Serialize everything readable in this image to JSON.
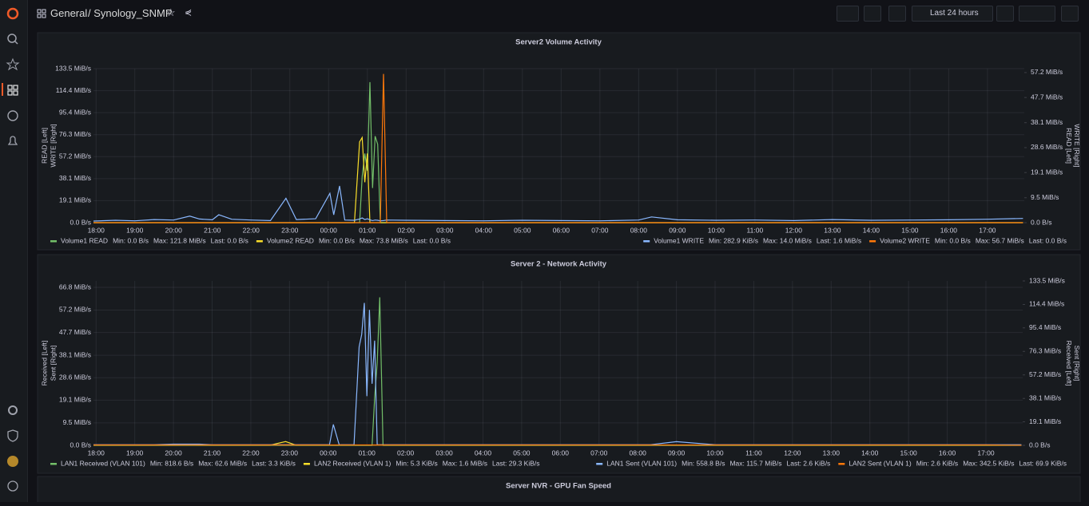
{
  "header": {
    "folder": "General",
    "dashboard": "/ Synology_SNMP",
    "time_range": "Last 24 hours"
  },
  "next_panel": {
    "title": "Server NVR - GPU Fan Speed"
  },
  "chart_data": [
    {
      "type": "line",
      "title": "Server2 Volume Activity",
      "ylabel": [
        "READ [Left]",
        "WRITE [Right]"
      ],
      "y2label": [
        "READ [Left]",
        "WRITE [Right]"
      ],
      "x": [
        "17:56",
        "18:30",
        "19:00",
        "19:30",
        "20:00",
        "20:25",
        "20:40",
        "21:00",
        "21:10",
        "21:30",
        "22:00",
        "22:30",
        "22:54",
        "23:10",
        "23:40",
        "00:02",
        "00:08",
        "00:17",
        "00:25",
        "00:40",
        "00:48",
        "00:52",
        "00:56",
        "01:00",
        "01:04",
        "01:08",
        "01:12",
        "01:16",
        "01:20",
        "01:25",
        "01:30",
        "02:00",
        "03:00",
        "04:00",
        "05:00",
        "06:00",
        "07:00",
        "08:00",
        "08:20",
        "09:00",
        "10:00",
        "11:00",
        "12:00",
        "13:00",
        "14:00",
        "15:00",
        "16:00",
        "17:00",
        "17:55"
      ],
      "xlim": [
        "17:56",
        "17:57"
      ],
      "xticks": [
        "18:00",
        "19:00",
        "20:00",
        "21:00",
        "22:00",
        "23:00",
        "00:00",
        "01:00",
        "02:00",
        "03:00",
        "04:00",
        "05:00",
        "06:00",
        "07:00",
        "08:00",
        "09:00",
        "10:00",
        "11:00",
        "12:00",
        "13:00",
        "14:00",
        "15:00",
        "16:00",
        "17:00"
      ],
      "ylim": [
        0,
        133.5
      ],
      "yticks": [
        {
          "value": 0,
          "label": "0.0 B/s"
        },
        {
          "value": 19.1,
          "label": "19.1 MiB/s"
        },
        {
          "value": 38.1,
          "label": "38.1 MiB/s"
        },
        {
          "value": 57.2,
          "label": "57.2 MiB/s"
        },
        {
          "value": 76.3,
          "label": "76.3 MiB/s"
        },
        {
          "value": 95.4,
          "label": "95.4 MiB/s"
        },
        {
          "value": 114.4,
          "label": "114.4 MiB/s"
        },
        {
          "value": 133.5,
          "label": "133.5 MiB/s"
        }
      ],
      "y2lim": [
        0,
        58.7
      ],
      "y2ticks": [
        {
          "value": 0,
          "label": "0.0 B/s"
        },
        {
          "value": 9.5,
          "label": "9.5 MiB/s"
        },
        {
          "value": 19.1,
          "label": "19.1 MiB/s"
        },
        {
          "value": 28.6,
          "label": "28.6 MiB/s"
        },
        {
          "value": 38.1,
          "label": "38.1 MiB/s"
        },
        {
          "value": 47.7,
          "label": "47.7 MiB/s"
        },
        {
          "value": 57.2,
          "label": "57.2 MiB/s"
        }
      ],
      "grid": true,
      "series": [
        {
          "name": "Volume1 READ",
          "color": "#73bf69",
          "stats": [
            "Min: 0.0 B/s",
            "Max: 121.8 MiB/s",
            "Last: 0.0 B/s"
          ],
          "values": [
            0,
            0,
            0,
            0,
            0,
            0,
            0,
            0,
            0,
            0,
            0,
            0,
            0,
            0,
            0,
            0,
            0,
            0,
            0,
            0,
            0,
            40,
            60,
            45,
            121.8,
            30,
            75,
            68,
            0,
            0,
            0,
            0,
            0,
            0,
            0,
            0,
            0,
            0,
            0,
            0,
            0,
            0,
            0,
            0,
            0,
            0,
            0,
            0,
            0
          ]
        },
        {
          "name": "Volume2 READ",
          "color": "#fade2a",
          "stats": [
            "Min: 0.0 B/s",
            "Max: 73.8 MiB/s",
            "Last: 0.0 B/s"
          ],
          "values": [
            0,
            0,
            0,
            0,
            0,
            0,
            0,
            0,
            0,
            0,
            0,
            0,
            0,
            0,
            0,
            0,
            0,
            0,
            0,
            0,
            70,
            73.8,
            35,
            60,
            0,
            0,
            0,
            0,
            0,
            0,
            0,
            0,
            0,
            0,
            0,
            0,
            0,
            0,
            0,
            0,
            0,
            0,
            0,
            0,
            0,
            0,
            0,
            0,
            0
          ]
        },
        {
          "name": "Volume1 WRITE",
          "color": "#8ab8ff",
          "axis": "y2",
          "stats": [
            "Min: 282.9 KiB/s",
            "Max: 14.0 MiB/s",
            "Last: 1.6 MiB/s"
          ],
          "values": [
            0.6,
            0.9,
            0.7,
            1.2,
            1.0,
            2.5,
            1.4,
            1.1,
            3.0,
            1.3,
            1.0,
            0.8,
            9.3,
            1.2,
            1.5,
            11.2,
            3.0,
            14.0,
            1.0,
            0.9,
            1.4,
            1.8,
            1.2,
            1.5,
            1.1,
            0.8,
            1.0,
            0.9,
            0.7,
            0.8,
            1.0,
            0.9,
            0.8,
            0.7,
            0.9,
            0.8,
            0.7,
            1.0,
            2.2,
            1.1,
            0.9,
            1.0,
            0.8,
            1.2,
            0.9,
            1.0,
            1.1,
            1.3,
            1.6
          ]
        },
        {
          "name": "Volume2 WRITE",
          "color": "#ff780a",
          "axis": "y2",
          "stats": [
            "Min: 0.0 B/s",
            "Max: 56.7 MiB/s",
            "Last: 0.0 B/s"
          ],
          "values": [
            0,
            0,
            0,
            0,
            0,
            0,
            0,
            0,
            0,
            0,
            0,
            0,
            0,
            0,
            0,
            0,
            0,
            0,
            0,
            0,
            0,
            0,
            0,
            0,
            0,
            0,
            0,
            0,
            0,
            56.7,
            0,
            0,
            0,
            0,
            0,
            0,
            0,
            0,
            0,
            0,
            0,
            0,
            0,
            0,
            0,
            0,
            0,
            0,
            0
          ]
        }
      ]
    },
    {
      "type": "line",
      "title": "Server 2 - Network Activity",
      "ylabel": [
        "Received [Left]",
        "Sent [Right]"
      ],
      "y2label": [
        "Received [Left]",
        "Sent [Right]"
      ],
      "x": [
        "17:56",
        "18:30",
        "19:00",
        "19:30",
        "20:00",
        "20:25",
        "20:40",
        "21:00",
        "21:10",
        "21:30",
        "22:00",
        "22:30",
        "22:54",
        "23:10",
        "23:40",
        "00:02",
        "00:08",
        "00:17",
        "00:25",
        "00:40",
        "00:48",
        "00:52",
        "00:56",
        "01:00",
        "01:04",
        "01:08",
        "01:12",
        "01:16",
        "01:20",
        "01:25",
        "01:30",
        "02:00",
        "03:00",
        "04:00",
        "05:00",
        "06:00",
        "07:00",
        "08:00",
        "08:20",
        "09:00",
        "10:00",
        "11:00",
        "12:00",
        "13:00",
        "14:00",
        "15:00",
        "16:00",
        "17:00",
        "17:55"
      ],
      "xlim": [
        "17:56",
        "17:57"
      ],
      "xticks": [
        "18:00",
        "19:00",
        "20:00",
        "21:00",
        "22:00",
        "23:00",
        "00:00",
        "01:00",
        "02:00",
        "03:00",
        "04:00",
        "05:00",
        "06:00",
        "07:00",
        "08:00",
        "09:00",
        "10:00",
        "11:00",
        "12:00",
        "13:00",
        "14:00",
        "15:00",
        "16:00",
        "17:00"
      ],
      "ylim": [
        0,
        69.5
      ],
      "yticks": [
        {
          "value": 0,
          "label": "0.0 B/s"
        },
        {
          "value": 9.5,
          "label": "9.5 MiB/s"
        },
        {
          "value": 19.1,
          "label": "19.1 MiB/s"
        },
        {
          "value": 28.6,
          "label": "28.6 MiB/s"
        },
        {
          "value": 38.1,
          "label": "38.1 MiB/s"
        },
        {
          "value": 47.7,
          "label": "47.7 MiB/s"
        },
        {
          "value": 57.2,
          "label": "57.2 MiB/s"
        },
        {
          "value": 66.8,
          "label": "66.8 MiB/s"
        }
      ],
      "y2lim": [
        0,
        133.5
      ],
      "y2ticks": [
        {
          "value": 0,
          "label": "0.0 B/s"
        },
        {
          "value": 19.1,
          "label": "19.1 MiB/s"
        },
        {
          "value": 38.1,
          "label": "38.1 MiB/s"
        },
        {
          "value": 57.2,
          "label": "57.2 MiB/s"
        },
        {
          "value": 76.3,
          "label": "76.3 MiB/s"
        },
        {
          "value": 95.4,
          "label": "95.4 MiB/s"
        },
        {
          "value": 114.4,
          "label": "114.4 MiB/s"
        },
        {
          "value": 133.5,
          "label": "133.5 MiB/s"
        }
      ],
      "grid": true,
      "series": [
        {
          "name": "LAN1 Received (VLAN 101)",
          "color": "#73bf69",
          "stats": [
            "Min: 818.6 B/s",
            "Max: 62.6 MiB/s",
            "Last: 3.3 KiB/s"
          ],
          "values": [
            0,
            0,
            0,
            0,
            0,
            0,
            0,
            0,
            0,
            0,
            0,
            0,
            0,
            0,
            0,
            0,
            0,
            0,
            0,
            0,
            0,
            0,
            0,
            0,
            0,
            0,
            20,
            35,
            62.6,
            0,
            0,
            0,
            0,
            0,
            0,
            0,
            0,
            0,
            0,
            0,
            0,
            0,
            0,
            0,
            0,
            0,
            0,
            0,
            0
          ]
        },
        {
          "name": "LAN2 Received (VLAN 1)",
          "color": "#fade2a",
          "stats": [
            "Min: 5.3 KiB/s",
            "Max: 1.6 MiB/s",
            "Last: 29.3 KiB/s"
          ],
          "values": [
            0.1,
            0.1,
            0.1,
            0.1,
            0.1,
            0.2,
            0.1,
            0.1,
            0.1,
            0.1,
            0.1,
            0.1,
            1.6,
            0.1,
            0.1,
            0.1,
            0.1,
            0.1,
            0.1,
            0.1,
            0.1,
            0.1,
            0.1,
            0.1,
            0.1,
            0.1,
            0.1,
            0.1,
            0.1,
            0.1,
            0.1,
            0.1,
            0.1,
            0.1,
            0.1,
            0.1,
            0.1,
            0.1,
            0.1,
            0.1,
            0.1,
            0.1,
            0.1,
            0.1,
            0.1,
            0.1,
            0.1,
            0.1,
            0.1
          ]
        },
        {
          "name": "LAN1 Sent (VLAN 101)",
          "color": "#8ab8ff",
          "axis": "y2",
          "stats": [
            "Min: 558.8 B/s",
            "Max: 115.7 MiB/s",
            "Last: 2.6 KiB/s"
          ],
          "values": [
            0.5,
            0.5,
            0.5,
            0.5,
            1,
            1,
            1,
            0.5,
            0.5,
            0.5,
            0.5,
            0.5,
            0.5,
            0.5,
            0.5,
            0.5,
            17,
            0.5,
            0.5,
            0.5,
            80,
            90,
            115.7,
            40,
            110,
            50,
            85,
            0.5,
            0.5,
            0.5,
            0.5,
            0.5,
            0.5,
            0.5,
            0.5,
            0.5,
            0.5,
            0.5,
            0.5,
            3,
            0.5,
            0.5,
            0.5,
            0.5,
            0.5,
            0.5,
            0.5,
            0.5,
            0.5
          ]
        },
        {
          "name": "LAN2 Sent (VLAN 1)",
          "color": "#ff780a",
          "axis": "y2",
          "stats": [
            "Min: 2.6 KiB/s",
            "Max: 342.5 KiB/s",
            "Last: 69.9 KiB/s"
          ],
          "values": [
            0.3,
            0.3,
            0.3,
            0.3,
            0.3,
            0.3,
            0.3,
            0.3,
            0.3,
            0.3,
            0.3,
            0.3,
            0.3,
            0.3,
            0.3,
            0.3,
            0.3,
            0.3,
            0.3,
            0.3,
            0.3,
            0.3,
            0.3,
            0.3,
            0.3,
            0.3,
            0.3,
            0.3,
            0.3,
            0.3,
            0.3,
            0.3,
            0.3,
            0.3,
            0.3,
            0.3,
            0.3,
            0.3,
            0.3,
            0.3,
            0.3,
            0.3,
            0.3,
            0.3,
            0.3,
            0.3,
            0.3,
            0.3,
            0.07
          ]
        }
      ]
    }
  ]
}
